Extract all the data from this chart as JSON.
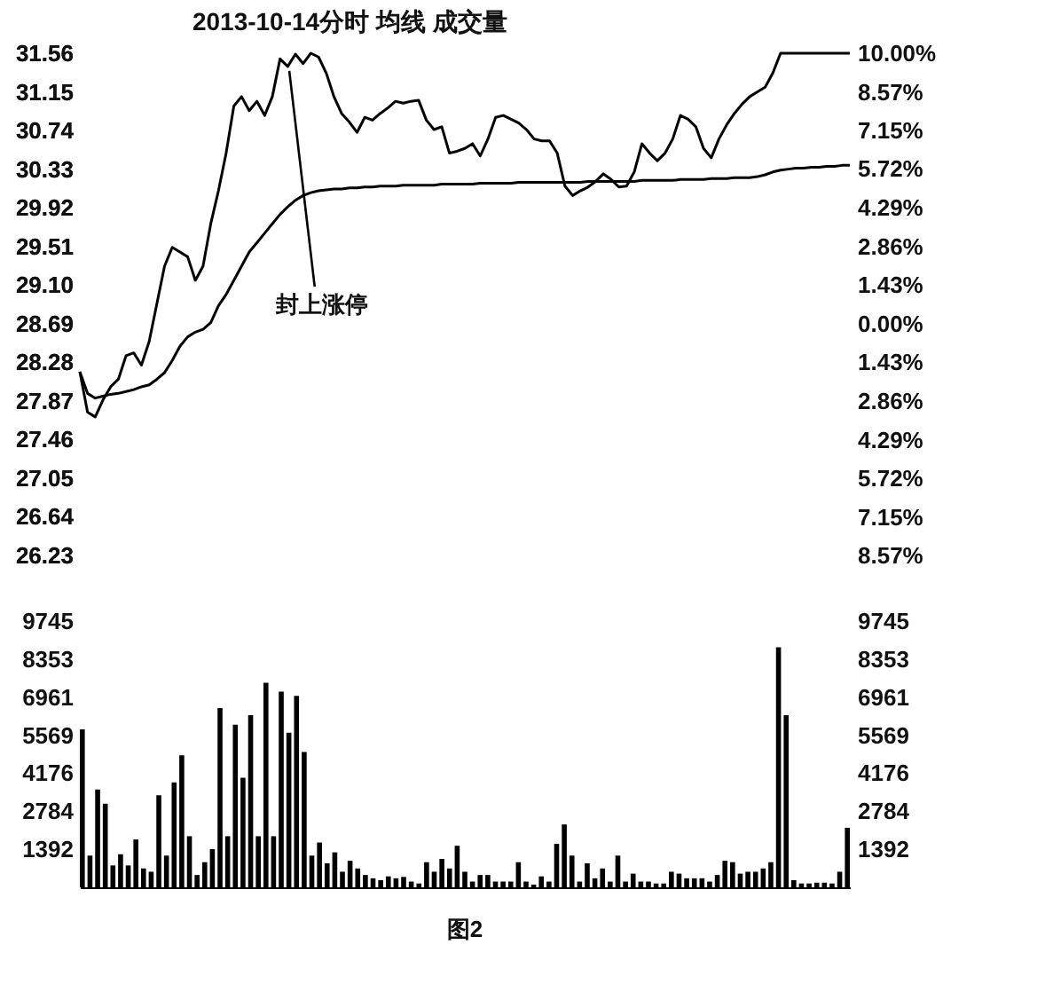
{
  "chart_data": [
    {
      "type": "line",
      "title": "2013-10-14分时  均线  成交量",
      "categories": [
        null,
        null,
        null,
        null,
        null,
        null,
        null,
        null,
        null,
        null,
        null,
        null,
        null,
        null,
        null,
        null,
        null,
        null,
        null,
        null,
        null,
        null,
        null,
        null,
        null,
        null,
        null,
        null,
        null,
        null,
        null,
        null,
        null,
        null,
        null,
        null,
        null,
        null,
        null,
        null,
        null,
        null,
        null,
        null,
        null,
        null,
        null,
        null,
        null,
        null,
        null,
        null,
        null,
        null,
        null,
        null,
        null,
        null,
        null,
        null,
        null,
        null,
        null,
        null,
        null,
        null,
        null,
        null,
        null,
        null,
        null,
        null,
        null,
        null,
        null,
        null,
        null,
        null,
        null,
        null,
        null,
        null,
        null,
        null,
        null,
        null,
        null,
        null,
        null,
        null,
        null,
        null,
        null,
        null,
        null,
        null,
        null,
        null,
        null,
        null,
        null
      ],
      "series": [
        {
          "color": "#000000",
          "values": [
            28.18,
            27.75,
            27.7,
            27.88,
            28.02,
            28.1,
            28.35,
            28.38,
            28.25,
            28.5,
            28.9,
            29.3,
            29.5,
            29.45,
            29.4,
            29.15,
            29.3,
            29.75,
            30.1,
            30.5,
            31.0,
            31.1,
            30.95,
            31.05,
            30.9,
            31.1,
            31.5,
            31.42,
            31.55,
            31.45,
            31.56,
            31.52,
            31.35,
            31.1,
            30.92,
            30.83,
            30.72,
            30.88,
            30.85,
            30.92,
            30.98,
            31.05,
            31.03,
            31.05,
            31.06,
            30.85,
            30.75,
            30.78,
            30.5,
            30.52,
            30.55,
            30.6,
            30.47,
            30.65,
            30.88,
            30.9,
            30.86,
            30.82,
            30.75,
            30.65,
            30.63,
            30.63,
            30.5,
            30.15,
            30.05,
            30.1,
            30.14,
            30.2,
            30.28,
            30.22,
            30.14,
            30.15,
            30.3,
            30.6,
            30.5,
            30.42,
            30.5,
            30.65,
            30.9,
            30.86,
            30.78,
            30.55,
            30.45,
            30.65,
            30.8,
            30.92,
            31.02,
            31.1,
            31.15,
            31.2,
            31.35,
            31.56,
            31.56,
            31.56,
            31.56,
            31.56,
            31.56,
            31.56,
            31.56,
            31.56,
            31.56
          ]
        },
        {
          "color": "#000000",
          "values": [
            28.18,
            27.95,
            27.9,
            27.92,
            27.94,
            27.95,
            27.97,
            27.99,
            28.02,
            28.04,
            28.1,
            28.17,
            28.3,
            28.45,
            28.55,
            28.6,
            28.63,
            28.7,
            28.88,
            29.0,
            29.15,
            29.3,
            29.45,
            29.55,
            29.65,
            29.75,
            29.85,
            29.93,
            30.0,
            30.05,
            30.08,
            30.1,
            30.11,
            30.12,
            30.12,
            30.13,
            30.13,
            30.14,
            30.14,
            30.15,
            30.15,
            30.15,
            30.16,
            30.16,
            30.16,
            30.16,
            30.16,
            30.17,
            30.17,
            30.17,
            30.17,
            30.17,
            30.18,
            30.18,
            30.18,
            30.18,
            30.18,
            30.19,
            30.19,
            30.19,
            30.19,
            30.19,
            30.19,
            30.19,
            30.19,
            30.19,
            30.2,
            30.2,
            30.2,
            30.2,
            30.2,
            30.2,
            30.2,
            30.21,
            30.21,
            30.21,
            30.21,
            30.21,
            30.22,
            30.22,
            30.22,
            30.22,
            30.23,
            30.23,
            30.23,
            30.24,
            30.24,
            30.24,
            30.25,
            30.27,
            30.3,
            30.32,
            30.33,
            30.34,
            30.34,
            30.35,
            30.35,
            30.36,
            30.36,
            30.37,
            30.37
          ]
        }
      ],
      "ylim": [
        26.23,
        31.56
      ],
      "yticks": [
        26.23,
        26.64,
        27.05,
        27.46,
        27.87,
        28.28,
        28.69,
        {
          "value": 29.1,
          "label": "29.10"
        },
        29.51,
        29.92,
        30.33,
        30.74,
        31.15,
        31.56
      ],
      "y2lim": [
        -8.57,
        10
      ],
      "y2ticks": [
        {
          "value": -8.57,
          "label": "8.57%"
        },
        {
          "value": -7.15,
          "label": "7.15%"
        },
        {
          "value": -5.72,
          "label": "5.72%"
        },
        {
          "value": -4.29,
          "label": "4.29%"
        },
        {
          "value": -2.86,
          "label": "2.86%"
        },
        {
          "value": -1.43,
          "label": "1.43%"
        },
        {
          "value": 0,
          "label": "0.00%"
        },
        {
          "value": 1.43,
          "label": "1.43%"
        },
        {
          "value": 2.86,
          "label": "2.86%"
        },
        {
          "value": 4.29,
          "label": "4.29%"
        },
        {
          "value": 5.72,
          "label": "5.72%"
        },
        {
          "value": 7.15,
          "label": "7.15%"
        },
        {
          "value": 8.57,
          "label": "8.57%"
        },
        {
          "value": 10,
          "label": "10.00%"
        }
      ],
      "tick_labels": "y",
      "annotations": [
        "封上涨停"
      ]
    },
    {
      "type": "bar",
      "categories": [
        null,
        null,
        null,
        null,
        null,
        null,
        null,
        null,
        null,
        null,
        null,
        null,
        null,
        null,
        null,
        null,
        null,
        null,
        null,
        null,
        null,
        null,
        null,
        null,
        null,
        null,
        null,
        null,
        null,
        null,
        null,
        null,
        null,
        null,
        null,
        null,
        null,
        null,
        null,
        null,
        null,
        null,
        null,
        null,
        null,
        null,
        null,
        null,
        null,
        null,
        null,
        null,
        null,
        null,
        null,
        null,
        null,
        null,
        null,
        null,
        null,
        null,
        null,
        null,
        null,
        null,
        null,
        null,
        null,
        null,
        null,
        null,
        null,
        null,
        null,
        null,
        null,
        null,
        null,
        null,
        null,
        null,
        null,
        null,
        null,
        null,
        null,
        null,
        null,
        null,
        null,
        null,
        null,
        null,
        null,
        null,
        null,
        null,
        null,
        null,
        null
      ],
      "color": "#000000",
      "values": [
        5780,
        1160,
        3580,
        3060,
        800,
        1210,
        800,
        1750,
        690,
        570,
        3370,
        1160,
        3840,
        4830,
        1870,
        450,
        920,
        1400,
        6560,
        1870,
        5950,
        4010,
        6300,
        1870,
        7490,
        1870,
        7160,
        5660,
        7010,
        4950,
        1160,
        1640,
        880,
        1280,
        570,
        970,
        690,
        450,
        330,
        260,
        400,
        330,
        380,
        210,
        140,
        920,
        570,
        1040,
        690,
        1520,
        570,
        210,
        450,
        450,
        210,
        210,
        210,
        920,
        210,
        100,
        400,
        210,
        1590,
        2300,
        1160,
        210,
        880,
        330,
        690,
        210,
        1160,
        210,
        500,
        210,
        210,
        140,
        140,
        570,
        500,
        330,
        330,
        330,
        210,
        450,
        970,
        920,
        500,
        570,
        570,
        690,
        920,
        8790,
        6300,
        260,
        140,
        140,
        170,
        170,
        140,
        570,
        2180
      ],
      "ylim": [
        0,
        9745
      ],
      "yticks": [
        1392,
        2784,
        4176,
        5569,
        6961,
        8353,
        9745
      ],
      "y2lim": [
        0,
        9745
      ],
      "y2ticks": [
        1392,
        2784,
        4176,
        5569,
        6961,
        8353,
        9745
      ],
      "tick_labels": "y",
      "annotations": [
        "图2"
      ]
    }
  ]
}
